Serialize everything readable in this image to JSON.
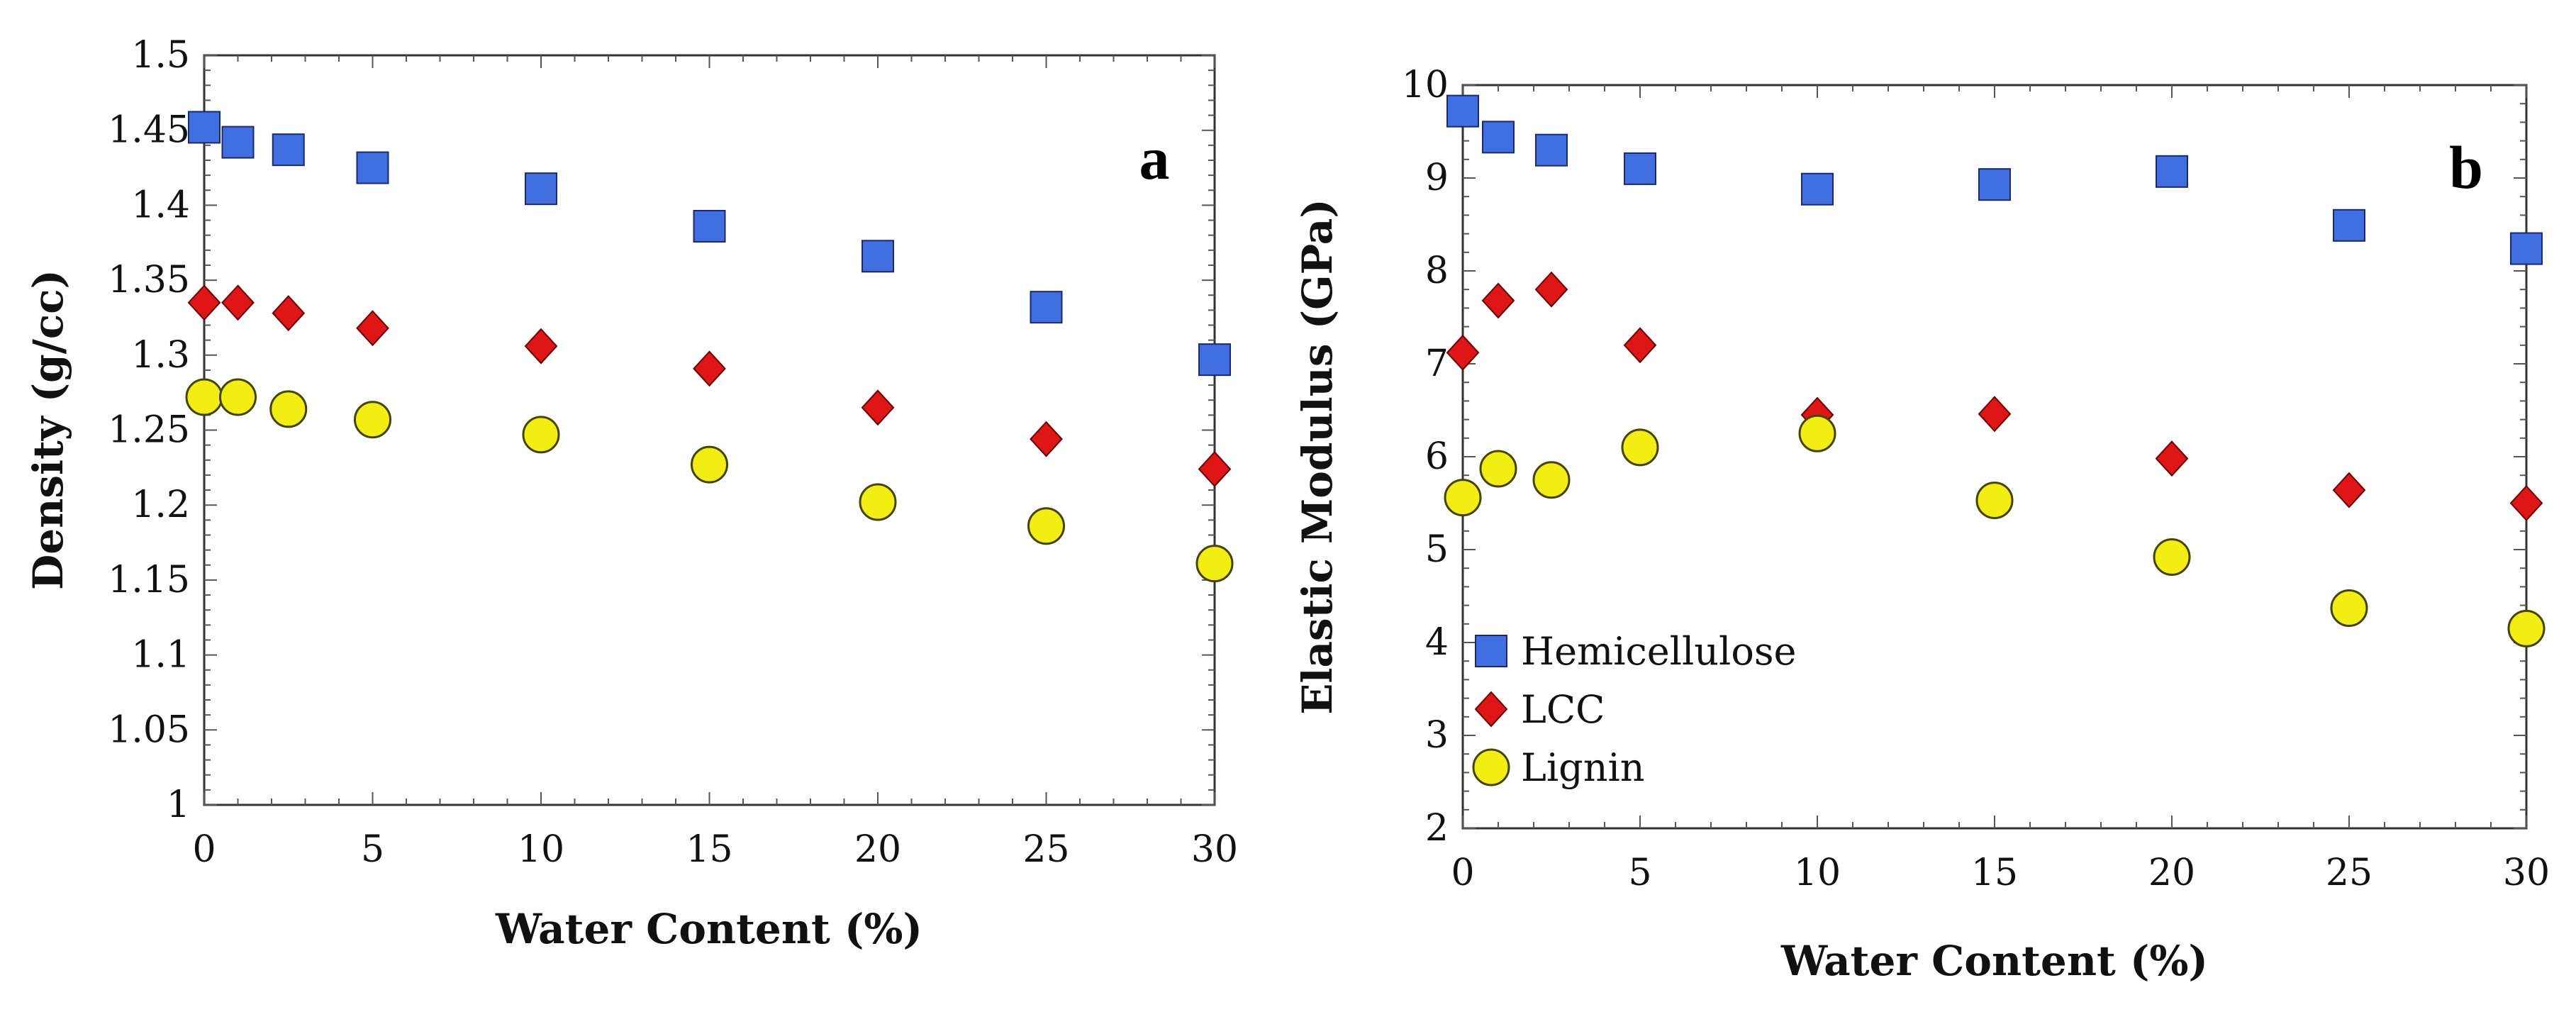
{
  "colors": {
    "Hemicellulose": "#3f6fe0",
    "LCC": "#e01515",
    "Lignin": "#f2ee12"
  },
  "legend": {
    "items": [
      {
        "name": "Hemicellulose",
        "marker": "square"
      },
      {
        "name": "LCC",
        "marker": "diamond"
      },
      {
        "name": "Lignin",
        "marker": "circle"
      }
    ]
  },
  "chart_data": [
    {
      "type": "scatter",
      "panel_label": "a",
      "xlabel": "Water Content (%)",
      "ylabel": "Density (g/cc)",
      "xlim": [
        0,
        30
      ],
      "ylim": [
        1,
        1.5
      ],
      "xticks": [
        "0",
        "5",
        "10",
        "15",
        "20",
        "25",
        "30"
      ],
      "yticks": [
        "1",
        "1.05",
        "1.1",
        "1.15",
        "1.2",
        "1.25",
        "1.3",
        "1.35",
        "1.4",
        "1.45",
        "1.5"
      ],
      "x": [
        0,
        1,
        2.5,
        5,
        10,
        15,
        20,
        25,
        30
      ],
      "series": [
        {
          "name": "Hemicellulose",
          "values": [
            1.452,
            1.442,
            1.437,
            1.425,
            1.411,
            1.386,
            1.366,
            1.332,
            1.297
          ]
        },
        {
          "name": "LCC",
          "values": [
            1.335,
            1.335,
            1.328,
            1.318,
            1.306,
            1.291,
            1.265,
            1.244,
            1.224
          ]
        },
        {
          "name": "Lignin",
          "values": [
            1.272,
            1.272,
            1.264,
            1.257,
            1.247,
            1.227,
            1.202,
            1.186,
            1.161
          ]
        }
      ],
      "legend": false
    },
    {
      "type": "scatter",
      "panel_label": "b",
      "xlabel": "Water Content (%)",
      "ylabel": "Elastic Modulus (GPa)",
      "xlim": [
        0,
        30
      ],
      "ylim": [
        2,
        10
      ],
      "xticks": [
        "0",
        "5",
        "10",
        "15",
        "20",
        "25",
        "30"
      ],
      "yticks": [
        "2",
        "3",
        "4",
        "5",
        "6",
        "7",
        "8",
        "9",
        "10"
      ],
      "x": [
        0,
        1,
        2.5,
        5,
        10,
        15,
        20,
        25,
        30
      ],
      "series": [
        {
          "name": "Hemicellulose",
          "values": [
            9.72,
            9.44,
            9.3,
            9.1,
            8.88,
            8.93,
            9.07,
            8.49,
            8.24
          ]
        },
        {
          "name": "LCC",
          "values": [
            7.12,
            7.68,
            7.8,
            7.2,
            6.45,
            6.46,
            5.98,
            5.64,
            5.5
          ]
        },
        {
          "name": "Lignin",
          "values": [
            5.56,
            5.87,
            5.75,
            6.1,
            6.25,
            5.53,
            4.92,
            4.37,
            4.15
          ]
        }
      ],
      "legend": true,
      "legend_placement": "lower-left"
    }
  ]
}
